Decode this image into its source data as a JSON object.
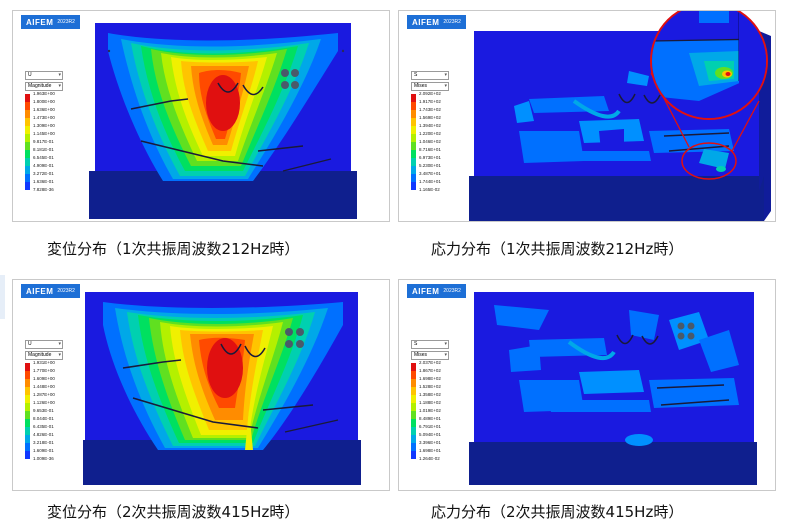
{
  "brand": {
    "name": "AIFEM",
    "version": "2023R2",
    "color": "#1d6fd6"
  },
  "legend_colors": [
    "#e01010",
    "#ff4a00",
    "#ff8c00",
    "#ffc400",
    "#f0f000",
    "#b4f000",
    "#60e020",
    "#00e060",
    "#00d0b0",
    "#00a8e8",
    "#0070ff",
    "#1038ff",
    "#1a1ae0"
  ],
  "panels": [
    {
      "caption": "変位分布（1次共振周波数212Hz時）",
      "type": "displacement",
      "legend": {
        "component": "U",
        "quantity": "Magnitude",
        "values": [
          "1.963E+00",
          "1.800E+00",
          "1.636E+00",
          "1.473E+00",
          "1.309E+00",
          "1.145E+00",
          "9.817E-01",
          "8.181E-01",
          "6.545E-01",
          "4.909E-01",
          "3.272E-01",
          "1.636E-01",
          "7.828E-36"
        ]
      }
    },
    {
      "caption": "応力分布（1次共振周波数212Hz時）",
      "type": "stress",
      "legend": {
        "component": "S",
        "quantity": "Mises",
        "values": [
          "2.092E+02",
          "1.917E+02",
          "1.743E+02",
          "1.569E+02",
          "1.394E+02",
          "1.220E+02",
          "1.046E+02",
          "8.716E+01",
          "6.973E+01",
          "5.230E+01",
          "3.487E+01",
          "1.744E+01",
          "1.165E-02"
        ]
      }
    },
    {
      "caption": "変位分布（2次共振周波数415Hz時）",
      "type": "displacement",
      "legend": {
        "component": "U",
        "quantity": "Magnitude",
        "values": [
          "1.931E+00",
          "1.770E+00",
          "1.609E+00",
          "1.448E+00",
          "1.287E+00",
          "1.126E+00",
          "9.653E-01",
          "8.044E-01",
          "6.435E-01",
          "4.826E-01",
          "3.218E-01",
          "1.609E-01",
          "1.009E-36"
        ]
      }
    },
    {
      "caption": "応力分布（2次共振周波数415Hz時）",
      "type": "stress",
      "legend": {
        "component": "S",
        "quantity": "Mises",
        "values": [
          "2.037E+02",
          "1.867E+02",
          "1.698E+02",
          "1.528E+02",
          "1.358E+02",
          "1.188E+02",
          "1.019E+02",
          "8.489E+01",
          "6.791E+01",
          "5.094E+01",
          "3.396E+01",
          "1.698E+01",
          "1.264E-02"
        ]
      }
    }
  ]
}
